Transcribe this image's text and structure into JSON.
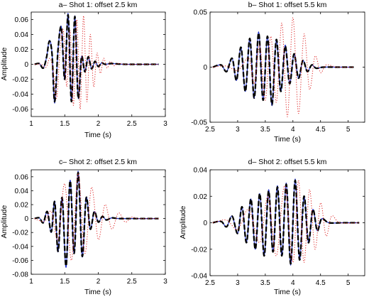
{
  "chart_data": [
    {
      "type": "line",
      "title": "a– Shot 1: offset 2.5 km",
      "xlabel": "Time (s)",
      "ylabel": "Amplitude",
      "xlim": [
        1,
        3
      ],
      "ylim": [
        -0.07,
        0.07
      ],
      "xticks": [
        1,
        1.5,
        2,
        2.5,
        3
      ],
      "xtick_labels": [
        "1",
        "1.5",
        "2",
        "2.5",
        "3"
      ],
      "yticks": [
        -0.06,
        -0.04,
        -0.02,
        0,
        0.02,
        0.04,
        0.06
      ],
      "ytick_labels": [
        "-0.06",
        "-0.04",
        "-0.02",
        "0",
        "0.02",
        "0.04",
        "0.06"
      ],
      "series": [
        {
          "color": "#2233cc",
          "style": "solid",
          "x": [
            1.05,
            1.12,
            1.18,
            1.23,
            1.27,
            1.31,
            1.35,
            1.4,
            1.45,
            1.5,
            1.55,
            1.6,
            1.65,
            1.7,
            1.75,
            1.8,
            1.85,
            1.9,
            1.95,
            2.0,
            2.05,
            2.1,
            2.2,
            2.4,
            2.9
          ],
          "y": [
            0,
            0.001,
            -0.005,
            0.01,
            0.032,
            0.015,
            -0.052,
            0.02,
            0.05,
            -0.02,
            0.068,
            -0.05,
            0.065,
            -0.045,
            0.01,
            -0.01,
            0.01,
            -0.006,
            0.004,
            -0.003,
            0.002,
            0,
            0.001,
            0,
            0
          ]
        },
        {
          "color": "#000000",
          "style": "dashed",
          "x": [
            1.05,
            1.12,
            1.18,
            1.23,
            1.27,
            1.31,
            1.35,
            1.4,
            1.45,
            1.5,
            1.55,
            1.6,
            1.65,
            1.7,
            1.75,
            1.8,
            1.85,
            1.9,
            1.95,
            2.0,
            2.05,
            2.1,
            2.2,
            2.4,
            2.9
          ],
          "y": [
            0,
            0.001,
            -0.005,
            0.01,
            0.031,
            0.014,
            -0.05,
            0.02,
            0.049,
            -0.02,
            0.066,
            -0.05,
            0.064,
            -0.045,
            0.01,
            -0.01,
            0.01,
            -0.006,
            0.004,
            -0.003,
            0.002,
            0,
            0.001,
            0,
            0
          ]
        },
        {
          "color": "#dd2222",
          "style": "dotted",
          "x": [
            1.05,
            1.15,
            1.22,
            1.28,
            1.33,
            1.38,
            1.43,
            1.48,
            1.53,
            1.58,
            1.63,
            1.68,
            1.73,
            1.78,
            1.83,
            1.88,
            1.93,
            1.98,
            2.03,
            2.08,
            2.13,
            2.18,
            2.23,
            2.3,
            2.4,
            2.6,
            2.9
          ],
          "y": [
            0,
            0,
            -0.004,
            0.008,
            -0.01,
            -0.045,
            0.02,
            0.045,
            -0.03,
            0.045,
            -0.055,
            0.06,
            -0.06,
            0.065,
            -0.05,
            0.04,
            -0.03,
            0.015,
            -0.012,
            0.008,
            -0.005,
            0.004,
            -0.002,
            0.001,
            0,
            0,
            0
          ]
        }
      ]
    },
    {
      "type": "line",
      "title": "b– Shot 1: offset 5.5 km",
      "xlabel": "Time (s)",
      "ylabel": "",
      "xlim": [
        2.5,
        5.3
      ],
      "ylim": [
        -0.05,
        0.05
      ],
      "xticks": [
        2.5,
        3,
        3.5,
        4,
        4.5,
        5
      ],
      "xtick_labels": [
        "2.5",
        "3",
        "3.5",
        "4",
        "4.5",
        "5"
      ],
      "yticks": [
        -0.05,
        0,
        0.05
      ],
      "ytick_labels": [
        "-0.05",
        "0",
        "0.05"
      ],
      "series": [
        {
          "color": "#2233cc",
          "style": "solid",
          "x": [
            2.55,
            2.7,
            2.8,
            2.9,
            2.98,
            3.06,
            3.14,
            3.22,
            3.3,
            3.38,
            3.46,
            3.54,
            3.62,
            3.7,
            3.78,
            3.86,
            3.94,
            4.02,
            4.1,
            4.18,
            4.26,
            4.34,
            4.42,
            4.55,
            4.8,
            5.1
          ],
          "y": [
            0,
            0.002,
            -0.004,
            0.008,
            -0.012,
            0.018,
            -0.022,
            0.026,
            -0.028,
            0.032,
            -0.03,
            0.028,
            -0.035,
            0.025,
            -0.022,
            0.02,
            -0.015,
            0.012,
            -0.01,
            0.006,
            -0.004,
            0.002,
            -0.001,
            0,
            0,
            0
          ]
        },
        {
          "color": "#000000",
          "style": "dashed",
          "x": [
            2.55,
            2.7,
            2.8,
            2.9,
            2.98,
            3.06,
            3.14,
            3.22,
            3.3,
            3.38,
            3.46,
            3.54,
            3.62,
            3.7,
            3.78,
            3.86,
            3.94,
            4.02,
            4.1,
            4.18,
            4.26,
            4.34,
            4.42,
            4.55,
            4.8,
            5.1
          ],
          "y": [
            0,
            0.002,
            -0.004,
            0.008,
            -0.012,
            0.018,
            -0.022,
            0.026,
            -0.028,
            0.031,
            -0.03,
            0.028,
            -0.034,
            0.025,
            -0.022,
            0.019,
            -0.015,
            0.012,
            -0.01,
            0.006,
            -0.004,
            0.002,
            -0.001,
            0,
            0,
            0
          ]
        },
        {
          "color": "#dd2222",
          "style": "dotted",
          "x": [
            2.55,
            2.8,
            3.0,
            3.2,
            3.3,
            3.4,
            3.5,
            3.6,
            3.7,
            3.8,
            3.9,
            4.0,
            4.1,
            4.2,
            4.3,
            4.4,
            4.5,
            4.6,
            4.8,
            5.1
          ],
          "y": [
            0,
            0.001,
            -0.003,
            0.008,
            -0.015,
            0.02,
            -0.03,
            0.028,
            -0.032,
            0.04,
            -0.045,
            0.045,
            -0.042,
            0.03,
            -0.02,
            0.01,
            -0.005,
            0.002,
            0,
            0
          ]
        }
      ]
    },
    {
      "type": "line",
      "title": "c– Shot 2: offset 2.5 km",
      "xlabel": "Time (s)",
      "ylabel": "Amplitude",
      "xlim": [
        1,
        3
      ],
      "ylim": [
        -0.08,
        0.07
      ],
      "xticks": [
        1,
        1.5,
        2,
        2.5,
        3
      ],
      "xtick_labels": [
        "1",
        "1.5",
        "2",
        "2.5",
        "3"
      ],
      "yticks": [
        -0.08,
        -0.06,
        -0.04,
        -0.02,
        0,
        0.02,
        0.04,
        0.06
      ],
      "ytick_labels": [
        "-0.08",
        "-0.06",
        "-0.04",
        "-0.02",
        "0",
        "0.02",
        "0.04",
        "0.06"
      ],
      "series": [
        {
          "color": "#2233cc",
          "style": "solid",
          "x": [
            1.05,
            1.12,
            1.18,
            1.24,
            1.3,
            1.35,
            1.4,
            1.46,
            1.52,
            1.58,
            1.64,
            1.7,
            1.76,
            1.82,
            1.88,
            1.94,
            2.0,
            2.06,
            2.12,
            2.2,
            2.3,
            2.5,
            2.9
          ],
          "y": [
            0,
            0.001,
            -0.006,
            0.01,
            -0.02,
            0.025,
            -0.048,
            0.03,
            -0.07,
            0.055,
            -0.05,
            0.068,
            -0.055,
            0.03,
            -0.015,
            0.01,
            -0.005,
            0.003,
            -0.002,
            0.001,
            0,
            0,
            0
          ]
        },
        {
          "color": "#000000",
          "style": "dashed",
          "x": [
            1.05,
            1.12,
            1.18,
            1.24,
            1.3,
            1.35,
            1.4,
            1.46,
            1.52,
            1.58,
            1.64,
            1.7,
            1.76,
            1.82,
            1.88,
            1.94,
            2.0,
            2.06,
            2.12,
            2.2,
            2.3,
            2.5,
            2.9
          ],
          "y": [
            0,
            0.001,
            -0.006,
            0.01,
            -0.019,
            0.024,
            -0.047,
            0.03,
            -0.068,
            0.054,
            -0.05,
            0.066,
            -0.054,
            0.03,
            -0.015,
            0.01,
            -0.005,
            0.003,
            -0.002,
            0.001,
            0,
            0,
            0
          ]
        },
        {
          "color": "#dd2222",
          "style": "dotted",
          "x": [
            1.05,
            1.2,
            1.3,
            1.4,
            1.5,
            1.6,
            1.7,
            1.8,
            1.9,
            2.0,
            2.1,
            2.2,
            2.3,
            2.4,
            2.5,
            2.6,
            2.9
          ],
          "y": [
            0,
            -0.004,
            0.01,
            -0.03,
            0.05,
            -0.06,
            0.065,
            -0.05,
            0.045,
            -0.03,
            0.02,
            -0.015,
            0.008,
            -0.005,
            0.002,
            0,
            0
          ]
        }
      ]
    },
    {
      "type": "line",
      "title": "d– Shot 2: offset 5.5 km",
      "xlabel": "Time (s)",
      "ylabel": "Amplitude",
      "xlim": [
        2.5,
        5.3
      ],
      "ylim": [
        -0.04,
        0.04
      ],
      "xticks": [
        2.5,
        3,
        3.5,
        4,
        4.5,
        5
      ],
      "xtick_labels": [
        "2.5",
        "3",
        "3.5",
        "4",
        "4.5",
        "5"
      ],
      "yticks": [
        -0.04,
        -0.02,
        0,
        0.02,
        0.04
      ],
      "ytick_labels": [
        "-0.04",
        "-0.02",
        "0",
        "0.02",
        "0.04"
      ],
      "series": [
        {
          "color": "#2233cc",
          "style": "solid",
          "x": [
            2.55,
            2.7,
            2.8,
            2.9,
            3.0,
            3.08,
            3.16,
            3.24,
            3.32,
            3.4,
            3.48,
            3.56,
            3.64,
            3.72,
            3.8,
            3.88,
            3.96,
            4.04,
            4.12,
            4.2,
            4.28,
            4.36,
            4.44,
            4.52,
            4.65,
            4.9,
            5.2
          ],
          "y": [
            0,
            0.001,
            -0.003,
            0.005,
            -0.008,
            0.012,
            -0.015,
            0.018,
            -0.02,
            0.022,
            -0.025,
            0.025,
            -0.022,
            0.028,
            -0.025,
            0.03,
            -0.032,
            0.033,
            -0.028,
            0.02,
            -0.015,
            0.01,
            -0.006,
            0.003,
            0,
            0,
            0
          ]
        },
        {
          "color": "#000000",
          "style": "dashed",
          "x": [
            2.55,
            2.7,
            2.8,
            2.9,
            3.0,
            3.08,
            3.16,
            3.24,
            3.32,
            3.4,
            3.48,
            3.56,
            3.64,
            3.72,
            3.8,
            3.88,
            3.96,
            4.04,
            4.12,
            4.2,
            4.28,
            4.36,
            4.44,
            4.52,
            4.65,
            4.9,
            5.2
          ],
          "y": [
            0,
            0.001,
            -0.003,
            0.005,
            -0.008,
            0.012,
            -0.015,
            0.018,
            -0.02,
            0.022,
            -0.025,
            0.024,
            -0.022,
            0.027,
            -0.025,
            0.029,
            -0.031,
            0.032,
            -0.028,
            0.02,
            -0.015,
            0.01,
            -0.006,
            0.003,
            0,
            0,
            0
          ]
        },
        {
          "color": "#dd2222",
          "style": "dotted",
          "x": [
            2.55,
            2.8,
            3.0,
            3.2,
            3.4,
            3.55,
            3.7,
            3.85,
            4.0,
            4.1,
            4.2,
            4.3,
            4.4,
            4.5,
            4.6,
            4.7,
            4.85,
            5.2
          ],
          "y": [
            0,
            0.002,
            -0.005,
            0.01,
            -0.015,
            0.02,
            -0.025,
            0.028,
            -0.03,
            0.032,
            -0.03,
            0.025,
            -0.02,
            0.015,
            -0.01,
            0.005,
            0,
            0
          ]
        }
      ]
    }
  ]
}
